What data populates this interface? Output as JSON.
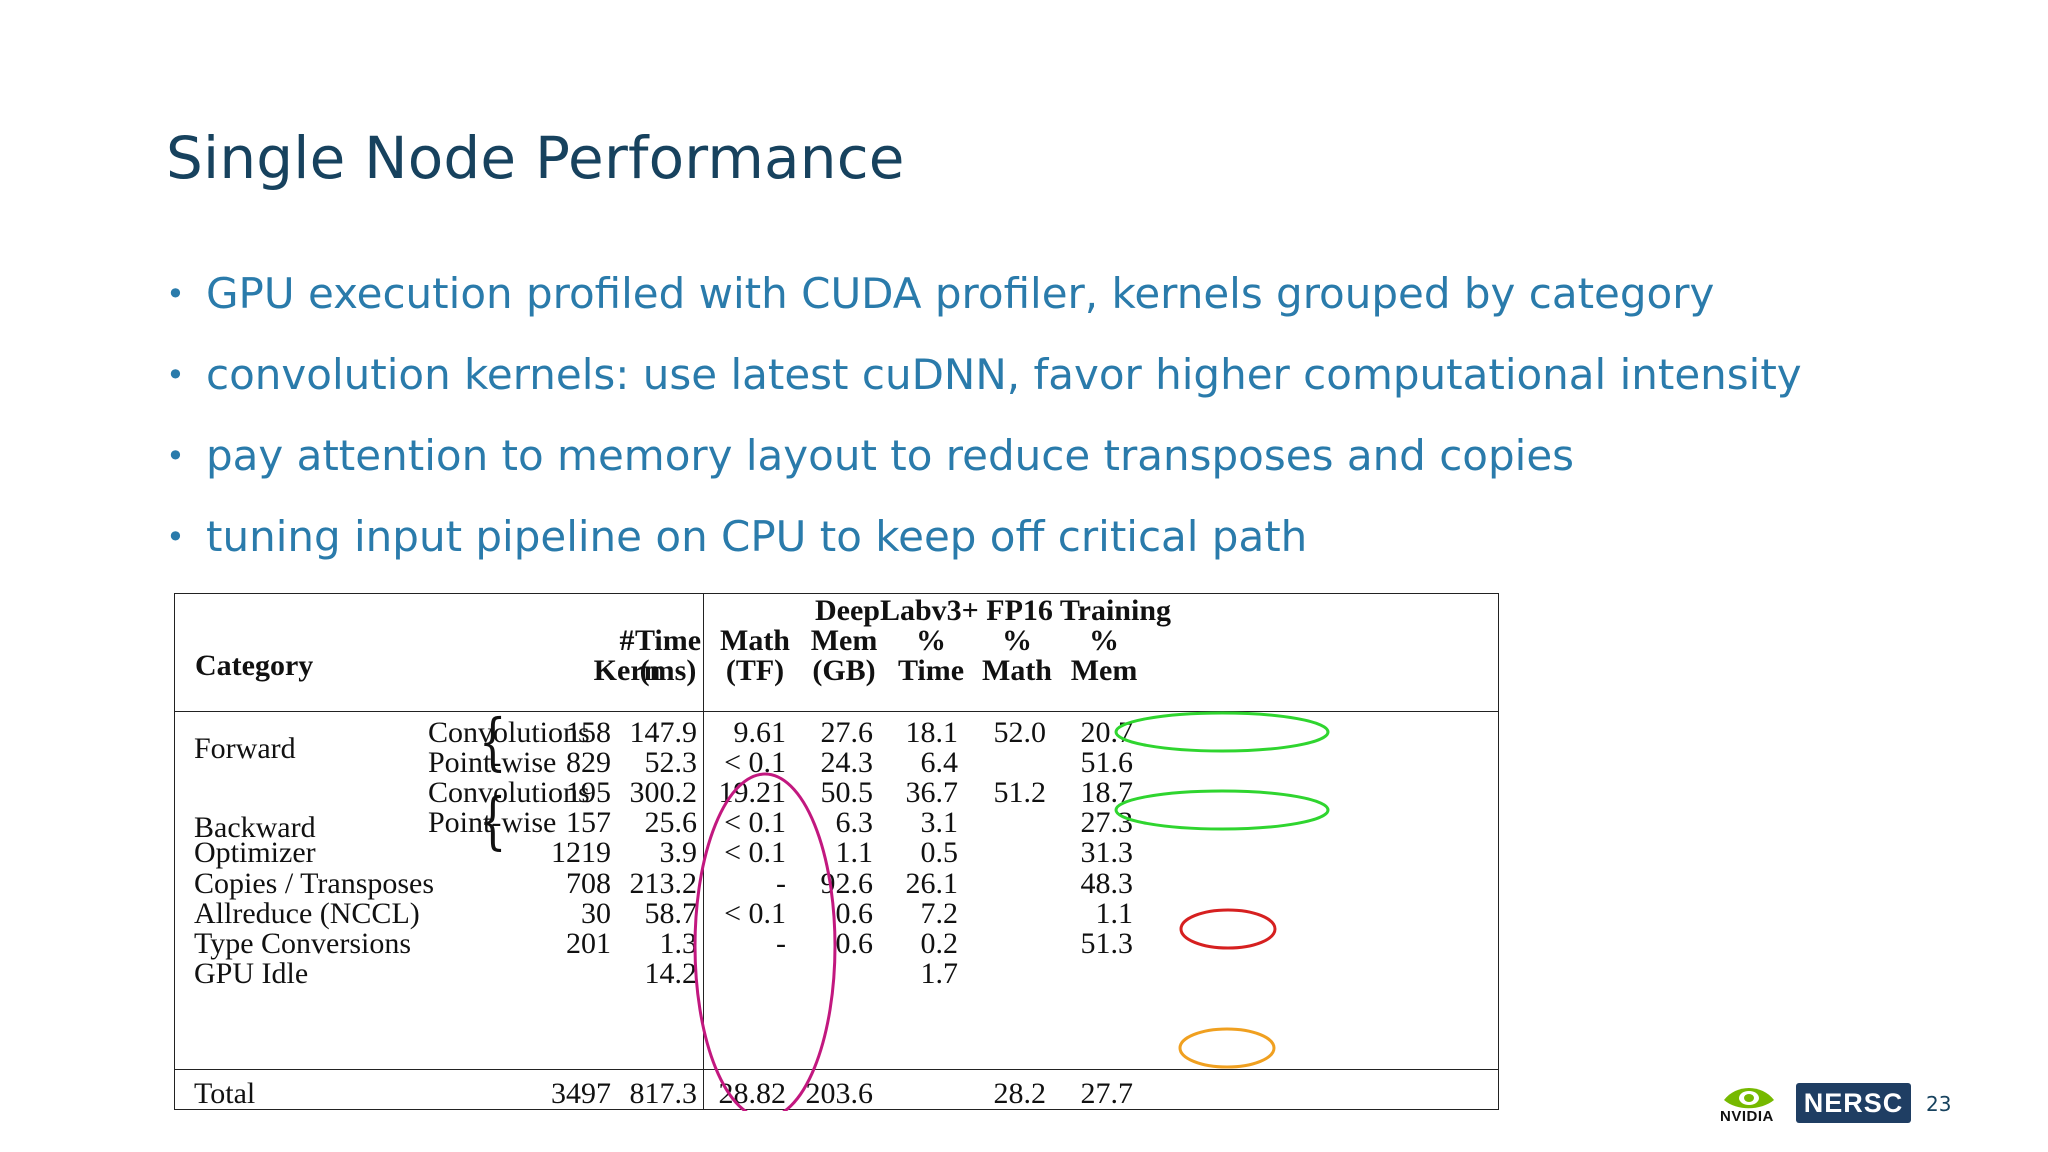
{
  "slide": {
    "title": "Single Node Performance",
    "page_number": "23"
  },
  "bullets": [
    "GPU execution profiled with CUDA profiler, kernels grouped by category",
    "convolution kernels: use latest cuDNN, favor higher computational intensity",
    "pay attention to memory layout to reduce transposes and copies",
    "tuning input pipeline on CPU to keep off critical path"
  ],
  "bullet_glyph": "•",
  "table": {
    "group_header": "DeepLabv3+ FP16 Training",
    "category_header": "Category",
    "columns": [
      {
        "line1": "#",
        "line2": "Kern"
      },
      {
        "line1": "Time",
        "line2": "(ms)"
      },
      {
        "line1": "Math",
        "line2": "(TF)"
      },
      {
        "line1": "Mem",
        "line2": "(GB)"
      },
      {
        "line1": "%",
        "line2": "Time"
      },
      {
        "line1": "%",
        "line2": "Math"
      },
      {
        "line1": "%",
        "line2": "Mem"
      }
    ],
    "groups": [
      {
        "label": "Forward",
        "brace": "{"
      },
      {
        "label": "Backward",
        "brace": "{"
      }
    ],
    "rows": [
      {
        "sub": "Convolutions",
        "kern": "158",
        "time": "147.9",
        "math": "9.61",
        "mem": "27.6",
        "pct_time": "18.1",
        "pct_math": "52.0",
        "pct_mem": "20.7"
      },
      {
        "sub": "Point-wise",
        "kern": "829",
        "time": "52.3",
        "math": "< 0.1",
        "mem": "24.3",
        "pct_time": "6.4",
        "pct_math": "",
        "pct_mem": "51.6"
      },
      {
        "sub": "Convolutions",
        "kern": "195",
        "time": "300.2",
        "math": "19.21",
        "mem": "50.5",
        "pct_time": "36.7",
        "pct_math": "51.2",
        "pct_mem": "18.7"
      },
      {
        "sub": "Point-wise",
        "kern": "157",
        "time": "25.6",
        "math": "< 0.1",
        "mem": "6.3",
        "pct_time": "3.1",
        "pct_math": "",
        "pct_mem": "27.3"
      },
      {
        "category": "Optimizer",
        "kern": "1219",
        "time": "3.9",
        "math": "< 0.1",
        "mem": "1.1",
        "pct_time": "0.5",
        "pct_math": "",
        "pct_mem": "31.3"
      },
      {
        "category": "Copies / Transposes",
        "kern": "708",
        "time": "213.2",
        "math": "-",
        "mem": "92.6",
        "pct_time": "26.1",
        "pct_math": "",
        "pct_mem": "48.3"
      },
      {
        "category": "Allreduce (NCCL)",
        "kern": "30",
        "time": "58.7",
        "math": "< 0.1",
        "mem": "0.6",
        "pct_time": "7.2",
        "pct_math": "",
        "pct_mem": "1.1"
      },
      {
        "category": "Type Conversions",
        "kern": "201",
        "time": "1.3",
        "math": "-",
        "mem": "0.6",
        "pct_time": "0.2",
        "pct_math": "",
        "pct_mem": "51.3"
      },
      {
        "category": "GPU Idle",
        "kern": "",
        "time": "14.2",
        "math": "",
        "mem": "",
        "pct_time": "1.7",
        "pct_math": "",
        "pct_mem": ""
      }
    ],
    "total": {
      "category": "Total",
      "kern": "3497",
      "time": "817.3",
      "math": "28.82",
      "mem": "203.6",
      "pct_time": "",
      "pct_math": "28.2",
      "pct_mem": "27.7"
    }
  },
  "annotations": {
    "colors": {
      "kern_column_ellipse": "#c2187f",
      "conv_ellipses": "#2fd52f",
      "copies_ellipse": "#d62020",
      "idle_ellipse": "#f0a020"
    }
  },
  "logos": {
    "nvidia": "NVIDIA",
    "nersc": "NERSC"
  },
  "colors": {
    "title": "#17425e",
    "bullet_text": "#2a7bab",
    "nersc_bg": "#1f3e63"
  }
}
